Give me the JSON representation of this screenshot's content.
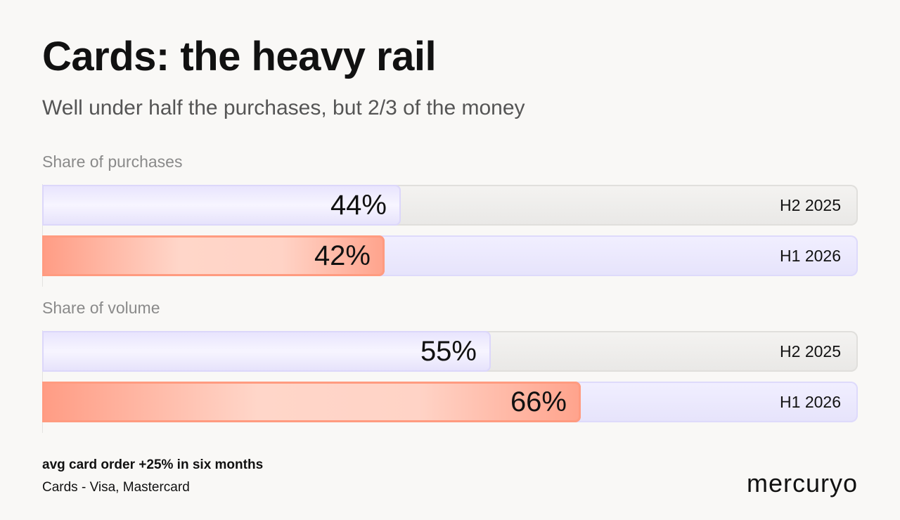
{
  "title": "Cards: the heavy rail",
  "subtitle": "Well under half the purchases, but 2/3 of the money",
  "chart_data": {
    "type": "bar",
    "orientation": "horizontal",
    "xlim": [
      0,
      100
    ],
    "unit": "%",
    "groups": [
      {
        "label": "Share of purchases",
        "bars": [
          {
            "period": "H2 2025",
            "value": 44,
            "label": "44%",
            "color": "#e7e3fd"
          },
          {
            "period": "H1 2026",
            "value": 42,
            "label": "42%",
            "color": "#ff9c84"
          }
        ]
      },
      {
        "label": "Share of volume",
        "bars": [
          {
            "period": "H2 2025",
            "value": 55,
            "label": "55%",
            "color": "#e7e3fd"
          },
          {
            "period": "H1 2026",
            "value": 66,
            "label": "66%",
            "color": "#ff9c84"
          }
        ]
      }
    ]
  },
  "note": "avg card order +25% in six months",
  "footer": "Cards - Visa, Mastercard",
  "brand": "mercuryo"
}
